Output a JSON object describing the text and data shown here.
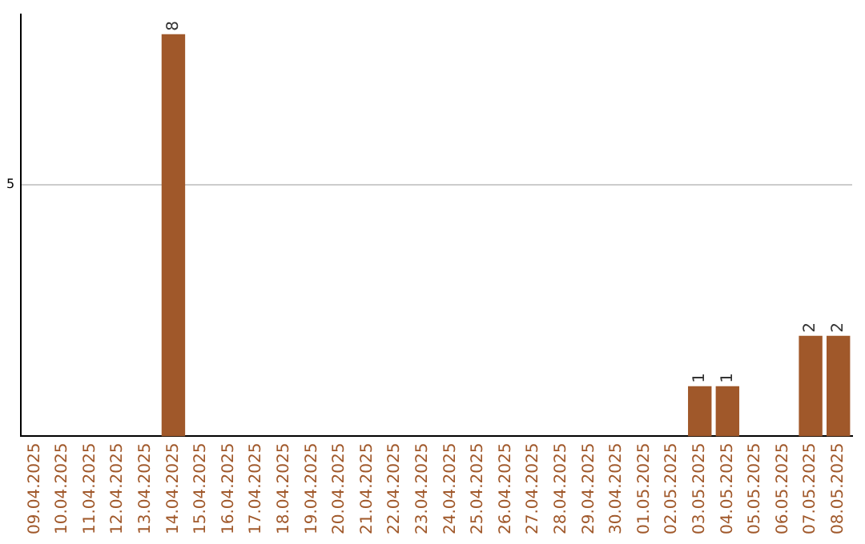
{
  "chart_data": {
    "type": "bar",
    "categories": [
      "09.04.2025",
      "10.04.2025",
      "11.04.2025",
      "12.04.2025",
      "13.04.2025",
      "14.04.2025",
      "15.04.2025",
      "16.04.2025",
      "17.04.2025",
      "18.04.2025",
      "19.04.2025",
      "20.04.2025",
      "21.04.2025",
      "22.04.2025",
      "23.04.2025",
      "24.04.2025",
      "25.04.2025",
      "26.04.2025",
      "27.04.2025",
      "28.04.2025",
      "29.04.2025",
      "30.04.2025",
      "01.05.2025",
      "02.05.2025",
      "03.05.2025",
      "04.05.2025",
      "05.05.2025",
      "06.05.2025",
      "07.05.2025",
      "08.05.2025"
    ],
    "values": [
      0,
      0,
      0,
      0,
      0,
      8,
      0,
      0,
      0,
      0,
      0,
      0,
      0,
      0,
      0,
      0,
      0,
      0,
      0,
      0,
      0,
      0,
      0,
      0,
      1,
      1,
      0,
      0,
      2,
      2
    ],
    "value_labels": [
      null,
      null,
      null,
      null,
      null,
      "8",
      null,
      null,
      null,
      null,
      null,
      null,
      null,
      null,
      null,
      null,
      null,
      null,
      null,
      null,
      null,
      null,
      null,
      null,
      "1",
      "1",
      null,
      null,
      "2",
      "2"
    ],
    "color": "#a0582a",
    "ylim": [
      0,
      8.4
    ],
    "yticks": [
      5
    ],
    "grid": "y",
    "legend": false
  }
}
